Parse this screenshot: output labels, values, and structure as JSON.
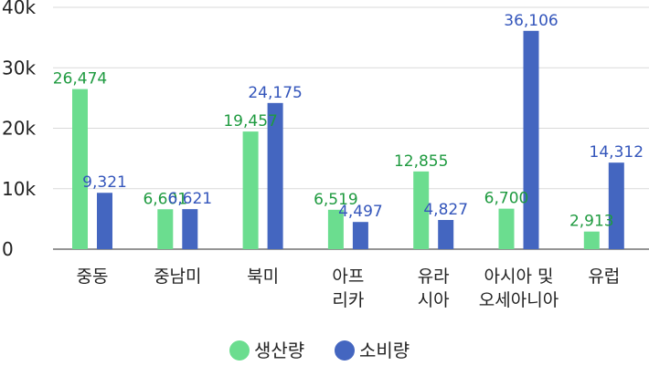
{
  "chart_data": {
    "type": "bar",
    "categories": [
      [
        "중동"
      ],
      [
        "중남미"
      ],
      [
        "북미"
      ],
      [
        "아프",
        "리카"
      ],
      [
        "유라",
        "시아"
      ],
      [
        "아시아 및",
        "오세아니아"
      ],
      [
        "유럽"
      ]
    ],
    "series": [
      {
        "name": "생산량",
        "color": "#6bdd8f",
        "label_color": "#1e9a3f",
        "values": [
          26474,
          6601,
          19457,
          6519,
          12855,
          6700,
          2913
        ],
        "labels": [
          "26,474",
          "6,601",
          "19,457",
          "6,519",
          "12,855",
          "6,700",
          "2,913"
        ]
      },
      {
        "name": "소비량",
        "color": "#4466c0",
        "label_color": "#3355bb",
        "values": [
          9321,
          6621,
          24175,
          4497,
          4827,
          36106,
          14312
        ],
        "labels": [
          "9,321",
          "6,621",
          "24,175",
          "4,497",
          "4,827",
          "36,106",
          "14,312"
        ]
      }
    ],
    "ylim": [
      0,
      40000
    ],
    "yticks": [
      0,
      10000,
      20000,
      30000,
      40000
    ],
    "ytick_labels": [
      "0",
      "10k",
      "20k",
      "30k",
      "40k"
    ],
    "grid": true,
    "legend_position": "bottom-center",
    "title": "",
    "xlabel": "",
    "ylabel": ""
  }
}
